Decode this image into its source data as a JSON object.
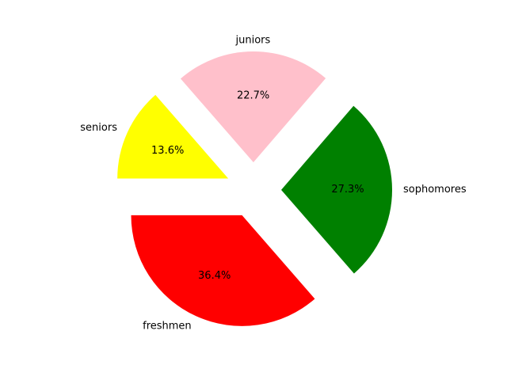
{
  "chart_data": {
    "type": "pie",
    "slices": [
      {
        "label": "freshmen",
        "value": 36.4,
        "pct_text": "36.4%",
        "color": "#ff0000"
      },
      {
        "label": "sophomores",
        "value": 27.3,
        "pct_text": "27.3%",
        "color": "#008000"
      },
      {
        "label": "juniors",
        "value": 22.7,
        "pct_text": "22.7%",
        "color": "#ffc0cb"
      },
      {
        "label": "seniors",
        "value": 13.6,
        "pct_text": "13.6%",
        "color": "#ffff00"
      }
    ],
    "start_angle_deg": 180,
    "direction": "counterclockwise",
    "exploded": true,
    "legend": "none"
  }
}
